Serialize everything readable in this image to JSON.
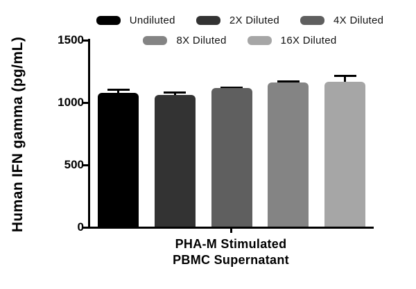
{
  "figure": {
    "background": "#ffffff"
  },
  "y_axis": {
    "title": "Human IFN gamma (pg/mL)",
    "tick_labels": [
      "0",
      "500",
      "1000",
      "1500"
    ]
  },
  "x_axis": {
    "label_line1": "PHA-M Stimulated",
    "label_line2": "PBMC Supernatant"
  },
  "legend": {
    "items": [
      {
        "label": "Undiluted",
        "color": "#000000"
      },
      {
        "label": "2X Diluted",
        "color": "#333333"
      },
      {
        "label": "4X Diluted",
        "color": "#5f5f5f"
      },
      {
        "label": "8X Diluted",
        "color": "#848484"
      },
      {
        "label": "16X Diluted",
        "color": "#a6a6a6"
      }
    ],
    "row_layout": [
      3,
      2
    ]
  },
  "chart_data": {
    "type": "bar",
    "title": "",
    "categories": [
      "Undiluted",
      "2X Diluted",
      "4X Diluted",
      "8X Diluted",
      "16X Diluted"
    ],
    "values": [
      1080,
      1060,
      1115,
      1160,
      1165
    ],
    "errors_plus": [
      25,
      20,
      5,
      10,
      50
    ],
    "bar_colors": [
      "#000000",
      "#333333",
      "#5f5f5f",
      "#848484",
      "#a6a6a6"
    ],
    "xlabel": "PHA-M Stimulated PBMC Supernatant",
    "ylabel": "Human IFN gamma (pg/mL)",
    "ylim": [
      0,
      1500
    ],
    "yticks": [
      0,
      500,
      1000,
      1500
    ],
    "grid": false,
    "legend_position": "top",
    "error_bar_style": "upper only, capped"
  }
}
